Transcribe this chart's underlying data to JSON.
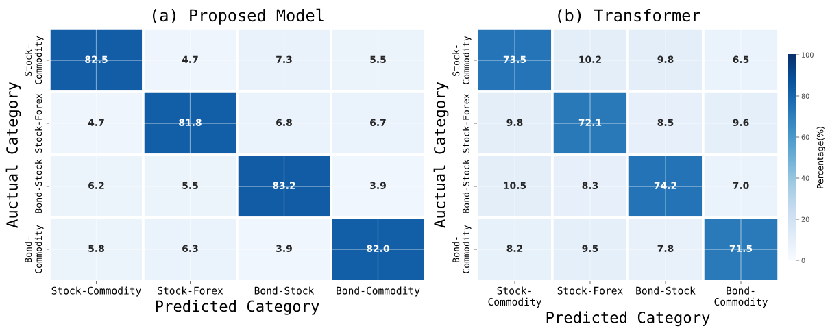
{
  "chart_data": [
    {
      "type": "heatmap",
      "title": "(a) Proposed Model",
      "xlabel": "Predicted Category",
      "ylabel": "Auctual Category",
      "categories": [
        "Stock-Commodity",
        "Stock-Forex",
        "Bond-Stock",
        "Bond-Commodity"
      ],
      "y_categories": [
        "Stock-\nCommodity",
        "Stock-Forex",
        "Bond-Stock",
        "Bond-\nCommodity"
      ],
      "cells": [
        [
          82.5,
          4.7,
          7.3,
          5.5
        ],
        [
          4.7,
          81.8,
          6.8,
          6.7
        ],
        [
          6.2,
          5.5,
          83.2,
          3.9
        ],
        [
          5.8,
          6.3,
          3.9,
          82.0
        ]
      ],
      "cell_labels": [
        [
          "82.5",
          "4.7",
          "7.3",
          "5.5"
        ],
        [
          "4.7",
          "81.8",
          "6.8",
          "6.7"
        ],
        [
          "6.2",
          "5.5",
          "83.2",
          "3.9"
        ],
        [
          "5.8",
          "6.3",
          "3.9",
          "82.0"
        ]
      ],
      "grid": true
    },
    {
      "type": "heatmap",
      "title": "(b) Transformer",
      "xlabel": "Predicted Category",
      "ylabel": "Auctual Category",
      "categories": [
        "Stock-\nCommodity",
        "Stock-Forex",
        "Bond-Stock",
        "Bond-\nCommodity"
      ],
      "y_categories": [
        "Stock-\nCommodity",
        "Stock-Forex",
        "Bond-Stock",
        "Bond-\nCommodity"
      ],
      "cells": [
        [
          73.5,
          10.2,
          9.8,
          6.5
        ],
        [
          9.8,
          72.1,
          8.5,
          9.6
        ],
        [
          10.5,
          8.3,
          74.2,
          7.0
        ],
        [
          8.2,
          9.5,
          7.8,
          71.5
        ]
      ],
      "cell_labels": [
        [
          "73.5",
          "10.2",
          "9.8",
          "6.5"
        ],
        [
          "9.8",
          "72.1",
          "8.5",
          "9.6"
        ],
        [
          "10.5",
          "8.3",
          "74.2",
          "7.0"
        ],
        [
          "8.2",
          "9.5",
          "7.8",
          "71.5"
        ]
      ],
      "clim": [
        0,
        100
      ],
      "cticks": [
        0,
        20,
        40,
        60,
        80,
        100
      ],
      "clabel": "Percentage(%)",
      "grid": true
    }
  ]
}
